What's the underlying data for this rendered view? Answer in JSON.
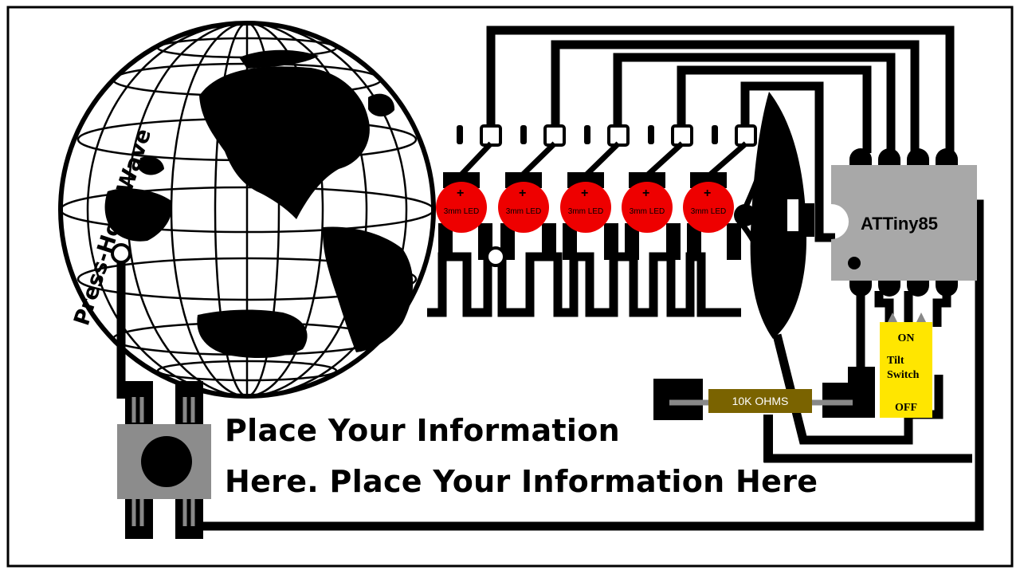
{
  "labels": {
    "project_name": "Press-Hold-Wave",
    "microcontroller": "ATTiny85",
    "resistor": "10K OHMS",
    "tilt_on": "ON",
    "tilt_line1": "Tilt",
    "tilt_line2": "Switch",
    "tilt_off": "OFF",
    "led_label": "3mm LED",
    "led_polarity": "+"
  },
  "info": {
    "line1": "Place Your Information",
    "line2": "Here.  Place Your Information Here"
  },
  "leds": [
    {
      "label": "3mm LED",
      "polarity": "+"
    },
    {
      "label": "3mm LED",
      "polarity": "+"
    },
    {
      "label": "3mm LED",
      "polarity": "+"
    },
    {
      "label": "3mm LED",
      "polarity": "+"
    },
    {
      "label": "3mm LED",
      "polarity": "+"
    }
  ],
  "colors": {
    "led_red": "#ee0000",
    "chip_gray": "#a8a8a8",
    "button_gray": "#8c8c8c",
    "resistor_olive": "#7a6300",
    "tilt_yellow": "#ffe600",
    "trace_black": "#000000"
  }
}
